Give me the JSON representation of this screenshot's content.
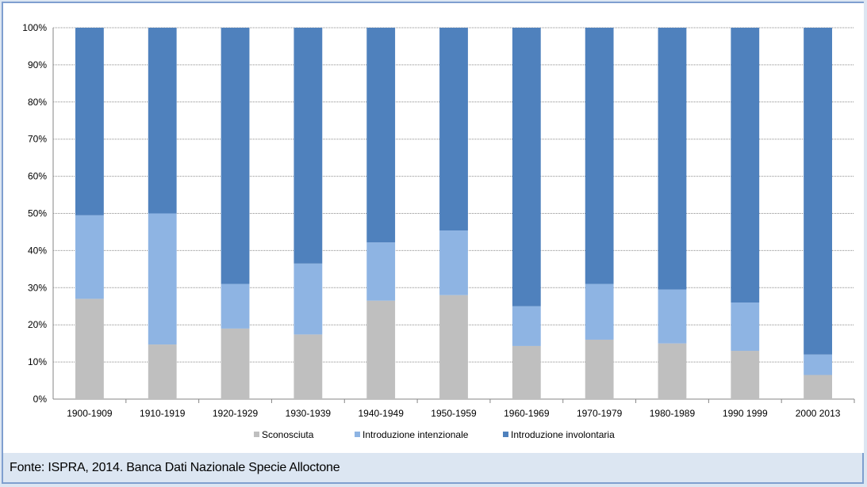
{
  "chart_data": {
    "type": "bar",
    "stacked": true,
    "categories": [
      "1900-1909",
      "1910-1919",
      "1920-1929",
      "1930-1939",
      "1940-1949",
      "1950-1959",
      "1960-1969",
      "1970-1979",
      "1980-1989",
      "1990 1999",
      "2000 2013"
    ],
    "series": [
      {
        "name": "Sconosciuta",
        "color": "#bfbfbf",
        "values": [
          27,
          14.7,
          19,
          17.4,
          26.5,
          28,
          14.3,
          16,
          15,
          13,
          6.5
        ]
      },
      {
        "name": "Introduzione intenzionale",
        "color": "#8eb4e3",
        "values": [
          22.5,
          35.3,
          12,
          19.1,
          15.7,
          17.4,
          10.7,
          15,
          14.5,
          13,
          5.5
        ]
      },
      {
        "name": "Introduzione involontaria",
        "color": "#4f81bd",
        "values": [
          50.5,
          50,
          69,
          63.5,
          57.8,
          54.6,
          75,
          69,
          70.5,
          74,
          88
        ]
      }
    ],
    "yticks": [
      "0%",
      "10%",
      "20%",
      "30%",
      "40%",
      "50%",
      "60%",
      "70%",
      "80%",
      "90%",
      "100%"
    ],
    "ylim": [
      0,
      100
    ],
    "grid": true,
    "legend_position": "bottom"
  },
  "source": "Fonte:  ISPRA, 2014. Banca Dati Nazionale Specie Alloctone"
}
